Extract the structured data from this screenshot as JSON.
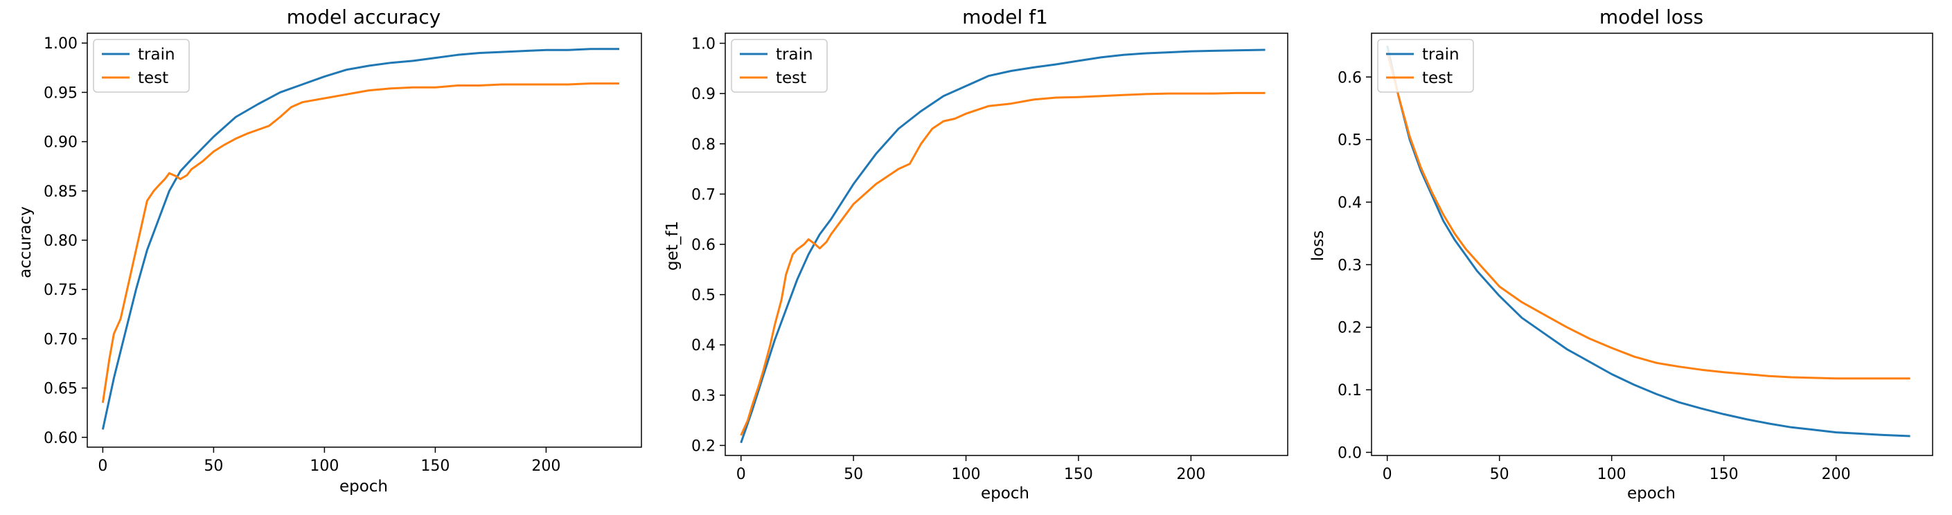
{
  "chart_data": [
    {
      "type": "line",
      "title": "model accuracy",
      "xlabel": "epoch",
      "ylabel": "accuracy",
      "xlim": [
        -7,
        243
      ],
      "ylim": [
        0.59,
        1.01
      ],
      "xticks": [
        0,
        50,
        100,
        150,
        200
      ],
      "yticks": [
        0.6,
        0.65,
        0.7,
        0.75,
        0.8,
        0.85,
        0.9,
        0.95,
        1.0
      ],
      "ytick_decimals": 2,
      "grid": false,
      "legend": "top-left",
      "series": [
        {
          "name": "train",
          "color": "#1f77b4",
          "x": [
            0,
            5,
            10,
            15,
            20,
            25,
            30,
            35,
            40,
            50,
            60,
            70,
            80,
            90,
            100,
            110,
            120,
            130,
            140,
            150,
            160,
            170,
            180,
            190,
            200,
            210,
            220,
            233
          ],
          "y": [
            0.608,
            0.66,
            0.705,
            0.75,
            0.79,
            0.82,
            0.85,
            0.87,
            0.882,
            0.905,
            0.925,
            0.938,
            0.95,
            0.958,
            0.966,
            0.973,
            0.977,
            0.98,
            0.982,
            0.985,
            0.988,
            0.99,
            0.991,
            0.992,
            0.993,
            0.993,
            0.994,
            0.994
          ]
        },
        {
          "name": "test",
          "color": "#ff7f0e",
          "x": [
            0,
            3,
            5,
            8,
            10,
            13,
            15,
            18,
            20,
            23,
            25,
            28,
            30,
            33,
            35,
            38,
            40,
            45,
            50,
            55,
            60,
            65,
            70,
            75,
            80,
            85,
            90,
            95,
            100,
            110,
            120,
            130,
            140,
            150,
            160,
            170,
            180,
            190,
            200,
            210,
            220,
            233
          ],
          "y": [
            0.635,
            0.68,
            0.705,
            0.72,
            0.74,
            0.77,
            0.79,
            0.82,
            0.84,
            0.85,
            0.855,
            0.862,
            0.868,
            0.865,
            0.862,
            0.866,
            0.872,
            0.88,
            0.89,
            0.897,
            0.903,
            0.908,
            0.912,
            0.916,
            0.925,
            0.935,
            0.94,
            0.942,
            0.944,
            0.948,
            0.952,
            0.954,
            0.955,
            0.955,
            0.957,
            0.957,
            0.958,
            0.958,
            0.958,
            0.958,
            0.959,
            0.959
          ]
        }
      ]
    },
    {
      "type": "line",
      "title": "model f1",
      "xlabel": "epoch",
      "ylabel": "get_f1",
      "xlim": [
        -7,
        243
      ],
      "ylim": [
        0.18,
        1.02
      ],
      "xticks": [
        0,
        50,
        100,
        150,
        200
      ],
      "yticks": [
        0.2,
        0.3,
        0.4,
        0.5,
        0.6,
        0.7,
        0.8,
        0.9,
        1.0
      ],
      "ytick_decimals": 1,
      "grid": false,
      "legend": "top-left",
      "series": [
        {
          "name": "train",
          "color": "#1f77b4",
          "x": [
            0,
            5,
            10,
            15,
            20,
            25,
            30,
            35,
            40,
            50,
            60,
            70,
            80,
            90,
            100,
            110,
            120,
            130,
            140,
            150,
            160,
            170,
            180,
            190,
            200,
            210,
            220,
            233
          ],
          "y": [
            0.205,
            0.27,
            0.34,
            0.41,
            0.47,
            0.53,
            0.58,
            0.62,
            0.65,
            0.72,
            0.78,
            0.83,
            0.865,
            0.895,
            0.915,
            0.935,
            0.945,
            0.952,
            0.958,
            0.965,
            0.972,
            0.977,
            0.98,
            0.982,
            0.984,
            0.985,
            0.986,
            0.987
          ]
        },
        {
          "name": "test",
          "color": "#ff7f0e",
          "x": [
            0,
            3,
            5,
            8,
            10,
            13,
            15,
            18,
            20,
            23,
            25,
            28,
            30,
            33,
            35,
            38,
            40,
            45,
            50,
            55,
            60,
            65,
            70,
            75,
            80,
            85,
            90,
            95,
            100,
            110,
            120,
            130,
            140,
            150,
            160,
            170,
            180,
            190,
            200,
            210,
            220,
            233
          ],
          "y": [
            0.22,
            0.25,
            0.28,
            0.32,
            0.35,
            0.4,
            0.44,
            0.49,
            0.54,
            0.58,
            0.59,
            0.6,
            0.61,
            0.6,
            0.592,
            0.605,
            0.62,
            0.65,
            0.68,
            0.7,
            0.72,
            0.735,
            0.75,
            0.76,
            0.8,
            0.83,
            0.845,
            0.85,
            0.86,
            0.875,
            0.88,
            0.888,
            0.892,
            0.893,
            0.895,
            0.897,
            0.899,
            0.9,
            0.9,
            0.9,
            0.901,
            0.901
          ]
        }
      ]
    },
    {
      "type": "line",
      "title": "model loss",
      "xlabel": "epoch",
      "ylabel": "loss",
      "xlim": [
        -7,
        243
      ],
      "ylim": [
        -0.005,
        0.67
      ],
      "xticks": [
        0,
        50,
        100,
        150,
        200
      ],
      "yticks": [
        0.0,
        0.1,
        0.2,
        0.3,
        0.4,
        0.5,
        0.6
      ],
      "ytick_decimals": 1,
      "grid": false,
      "legend": "top-left",
      "series": [
        {
          "name": "train",
          "color": "#1f77b4",
          "x": [
            0,
            5,
            10,
            15,
            20,
            25,
            30,
            35,
            40,
            50,
            60,
            70,
            80,
            90,
            100,
            110,
            120,
            130,
            140,
            150,
            160,
            170,
            180,
            190,
            200,
            210,
            220,
            233
          ],
          "y": [
            0.65,
            0.57,
            0.5,
            0.45,
            0.41,
            0.37,
            0.34,
            0.315,
            0.29,
            0.25,
            0.215,
            0.19,
            0.165,
            0.145,
            0.125,
            0.108,
            0.093,
            0.08,
            0.07,
            0.061,
            0.053,
            0.046,
            0.04,
            0.036,
            0.032,
            0.03,
            0.028,
            0.026
          ]
        },
        {
          "name": "test",
          "color": "#ff7f0e",
          "x": [
            0,
            5,
            10,
            15,
            20,
            25,
            30,
            35,
            40,
            50,
            60,
            70,
            80,
            90,
            100,
            110,
            120,
            130,
            140,
            150,
            160,
            170,
            180,
            190,
            200,
            210,
            220,
            233
          ],
          "y": [
            0.64,
            0.57,
            0.505,
            0.455,
            0.415,
            0.38,
            0.35,
            0.325,
            0.305,
            0.265,
            0.24,
            0.22,
            0.2,
            0.182,
            0.167,
            0.153,
            0.143,
            0.137,
            0.132,
            0.128,
            0.125,
            0.122,
            0.12,
            0.119,
            0.118,
            0.118,
            0.118,
            0.118
          ]
        }
      ]
    }
  ]
}
